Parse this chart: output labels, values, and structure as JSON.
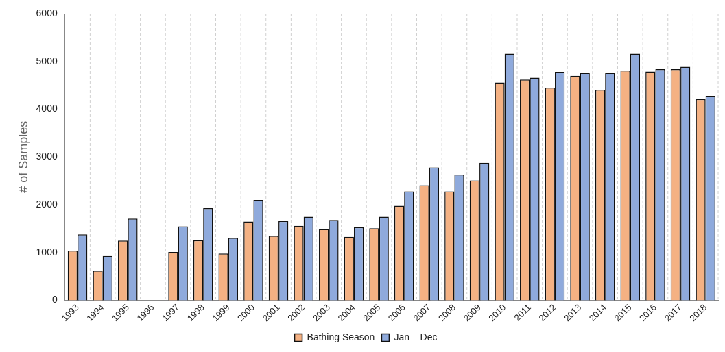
{
  "chart_data": {
    "type": "bar",
    "ylabel": "# of Samples",
    "categories": [
      "1993",
      "1994",
      "1995",
      "1996",
      "1997",
      "1998",
      "1999",
      "2000",
      "2001",
      "2002",
      "2003",
      "2004",
      "2005",
      "2006",
      "2007",
      "2008",
      "2009",
      "2010",
      "2011",
      "2012",
      "2013",
      "2014",
      "2015",
      "2016",
      "2017",
      "2018"
    ],
    "series": [
      {
        "name": "Bathing Season",
        "color": "#f4b183",
        "values": [
          1040,
          620,
          1250,
          null,
          1010,
          1260,
          980,
          1650,
          1350,
          1560,
          1490,
          1330,
          1510,
          1980,
          2410,
          2280,
          2510,
          4560,
          4620,
          4450,
          4700,
          4410,
          4810,
          4790,
          4840,
          4210
        ]
      },
      {
        "name": "Jan – Dec",
        "color": "#8faadc",
        "values": [
          1380,
          930,
          1710,
          null,
          1550,
          1930,
          1310,
          2100,
          1660,
          1750,
          1680,
          1530,
          1750,
          2280,
          2780,
          2630,
          2880,
          5160,
          4660,
          4780,
          4760,
          4760,
          5160,
          4840,
          4890,
          4280
        ]
      }
    ],
    "ylim": [
      0,
      6000
    ],
    "yticks": [
      0,
      1000,
      2000,
      3000,
      4000,
      5000,
      6000
    ],
    "grid": "x",
    "legend": "bottom"
  }
}
